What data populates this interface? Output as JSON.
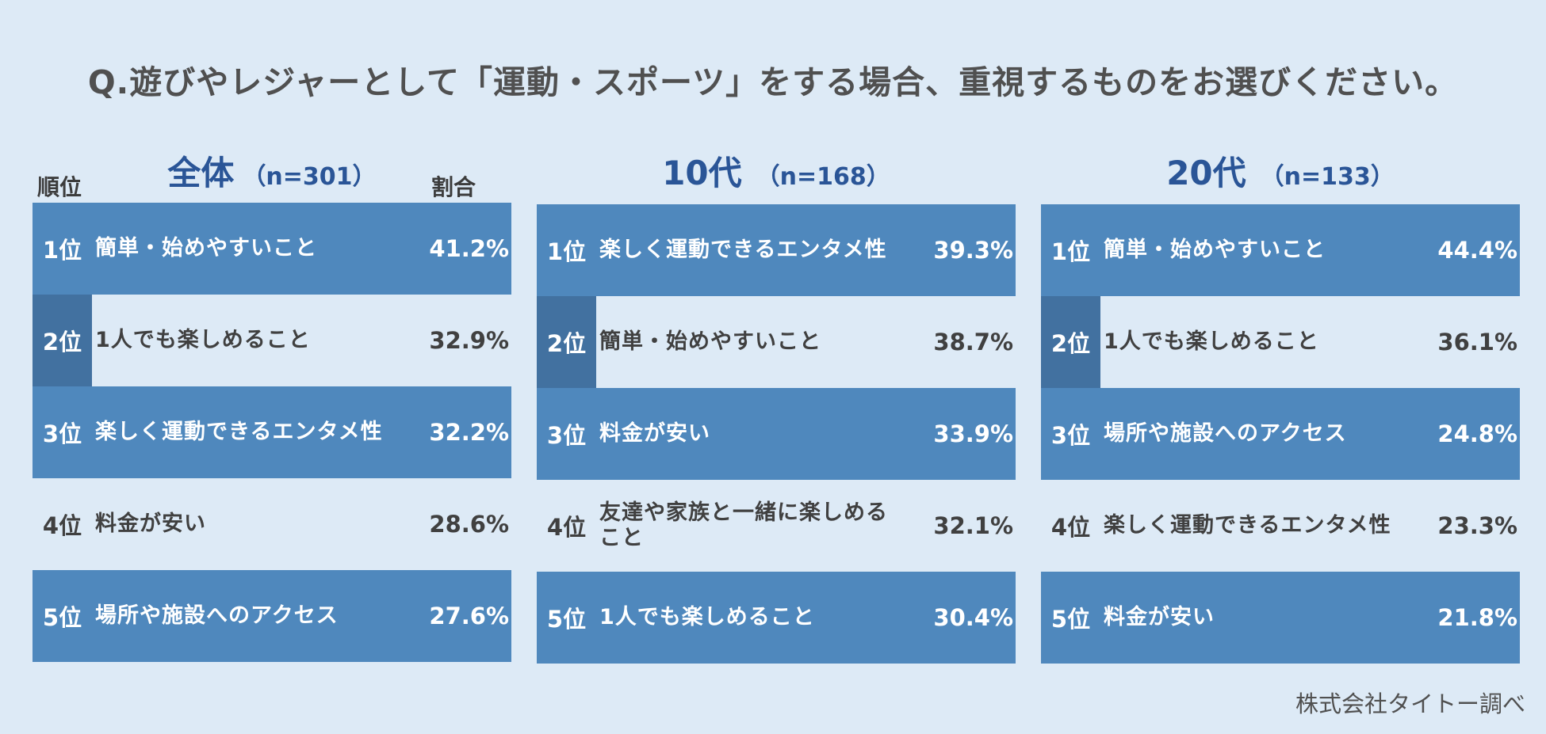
{
  "question": "Q.遊びやレジャーとして「運動・スポーツ」をする場合、重視するものをお選びください。",
  "headers": {
    "rank": "順位",
    "ratio": "割合"
  },
  "colors": {
    "background": "#ddeaf6",
    "bar": "#4f88bd",
    "rank_band": "#4271a0",
    "title": "#2a5597",
    "text": "#404040"
  },
  "chart_data": [
    {
      "type": "table",
      "group": "全体",
      "n": "（n=301）",
      "rows": [
        {
          "rank": "1位",
          "label": "簡単・始めやすいこと",
          "value": "41.2%"
        },
        {
          "rank": "2位",
          "label": "1人でも楽しめること",
          "value": "32.9%"
        },
        {
          "rank": "3位",
          "label": "楽しく運動できるエンタメ性",
          "value": "32.2%"
        },
        {
          "rank": "4位",
          "label": "料金が安い",
          "value": "28.6%"
        },
        {
          "rank": "5位",
          "label": "場所や施設へのアクセス",
          "value": "27.6%"
        }
      ]
    },
    {
      "type": "table",
      "group": "10代",
      "n": "（n=168）",
      "rows": [
        {
          "rank": "1位",
          "label": "楽しく運動できるエンタメ性",
          "value": "39.3%"
        },
        {
          "rank": "2位",
          "label": "簡単・始めやすいこと",
          "value": "38.7%"
        },
        {
          "rank": "3位",
          "label": "料金が安い",
          "value": "33.9%"
        },
        {
          "rank": "4位",
          "label": "友達や家族と一緒に楽しめること",
          "value": "32.1%"
        },
        {
          "rank": "5位",
          "label": "1人でも楽しめること",
          "value": "30.4%"
        }
      ]
    },
    {
      "type": "table",
      "group": "20代",
      "n": "（n=133）",
      "rows": [
        {
          "rank": "1位",
          "label": "簡単・始めやすいこと",
          "value": "44.4%"
        },
        {
          "rank": "2位",
          "label": "1人でも楽しめること",
          "value": "36.1%"
        },
        {
          "rank": "3位",
          "label": "場所や施設へのアクセス",
          "value": "24.8%"
        },
        {
          "rank": "4位",
          "label": "楽しく運動できるエンタメ性",
          "value": "23.3%"
        },
        {
          "rank": "5位",
          "label": "料金が安い",
          "value": "21.8%"
        }
      ]
    }
  ],
  "source": "株式会社タイトー調べ"
}
